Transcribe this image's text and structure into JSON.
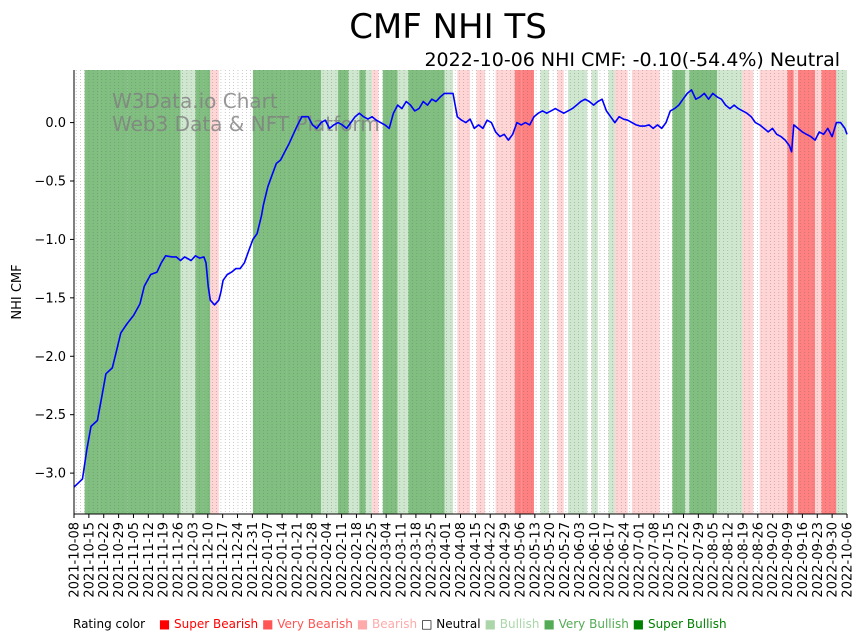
{
  "chart_data": {
    "type": "line",
    "title": "CMF NHI TS",
    "subtitle": "2022-10-06 NHI CMF: -0.10(-54.4%) Neutral",
    "ylabel": "NHI CMF",
    "xlabel": "",
    "ylim": [
      -3.35,
      0.45
    ],
    "yticks": [
      -3.0,
      -2.5,
      -2.0,
      -1.5,
      -1.0,
      -0.5,
      0.0
    ],
    "ytick_labels": [
      "−3.0",
      "−2.5",
      "−2.0",
      "−1.5",
      "−1.0",
      "−0.5",
      "0.0"
    ],
    "xrange": [
      0,
      363
    ],
    "xticks": [
      "2021-10-08",
      "2021-10-15",
      "2021-10-22",
      "2021-10-29",
      "2021-11-05",
      "2021-11-12",
      "2021-11-19",
      "2021-11-26",
      "2021-12-03",
      "2021-12-10",
      "2021-12-17",
      "2021-12-24",
      "2021-12-31",
      "2022-01-07",
      "2022-01-14",
      "2022-01-21",
      "2022-01-28",
      "2022-02-04",
      "2022-02-11",
      "2022-02-18",
      "2022-02-25",
      "2022-03-04",
      "2022-03-11",
      "2022-03-18",
      "2022-03-25",
      "2022-04-01",
      "2022-04-08",
      "2022-04-15",
      "2022-04-22",
      "2022-04-29",
      "2022-05-06",
      "2022-05-13",
      "2022-05-20",
      "2022-05-27",
      "2022-06-03",
      "2022-06-10",
      "2022-06-17",
      "2022-06-24",
      "2022-07-01",
      "2022-07-08",
      "2022-07-15",
      "2022-07-22",
      "2022-07-29",
      "2022-08-05",
      "2022-08-12",
      "2022-08-19",
      "2022-08-26",
      "2022-09-02",
      "2022-09-09",
      "2022-09-16",
      "2022-09-23",
      "2022-09-30",
      "2022-10-06"
    ],
    "series": [
      {
        "name": "NHI CMF",
        "color": "#0000ff",
        "points": [
          [
            0,
            -3.12
          ],
          [
            4,
            -3.05
          ],
          [
            6,
            -2.8
          ],
          [
            8,
            -2.6
          ],
          [
            11,
            -2.55
          ],
          [
            13,
            -2.35
          ],
          [
            15,
            -2.15
          ],
          [
            18,
            -2.1
          ],
          [
            20,
            -1.95
          ],
          [
            22,
            -1.8
          ],
          [
            25,
            -1.72
          ],
          [
            28,
            -1.65
          ],
          [
            31,
            -1.55
          ],
          [
            33,
            -1.4
          ],
          [
            36,
            -1.3
          ],
          [
            39,
            -1.28
          ],
          [
            41,
            -1.2
          ],
          [
            43,
            -1.14
          ],
          [
            46,
            -1.15
          ],
          [
            48,
            -1.15
          ],
          [
            50,
            -1.18
          ],
          [
            52,
            -1.15
          ],
          [
            55,
            -1.18
          ],
          [
            57,
            -1.14
          ],
          [
            59,
            -1.16
          ],
          [
            61,
            -1.15
          ],
          [
            62,
            -1.2
          ],
          [
            63,
            -1.4
          ],
          [
            64,
            -1.52
          ],
          [
            66,
            -1.56
          ],
          [
            68,
            -1.52
          ],
          [
            69,
            -1.45
          ],
          [
            70,
            -1.35
          ],
          [
            72,
            -1.3
          ],
          [
            74,
            -1.28
          ],
          [
            76,
            -1.25
          ],
          [
            78,
            -1.25
          ],
          [
            80,
            -1.2
          ],
          [
            82,
            -1.1
          ],
          [
            84,
            -1.0
          ],
          [
            86,
            -0.95
          ],
          [
            88,
            -0.8
          ],
          [
            89,
            -0.7
          ],
          [
            91,
            -0.55
          ],
          [
            93,
            -0.45
          ],
          [
            95,
            -0.35
          ],
          [
            97,
            -0.32
          ],
          [
            99,
            -0.25
          ],
          [
            101,
            -0.18
          ],
          [
            103,
            -0.1
          ],
          [
            105,
            -0.02
          ],
          [
            107,
            0.05
          ],
          [
            110,
            0.05
          ],
          [
            112,
            -0.02
          ],
          [
            114,
            -0.05
          ],
          [
            116,
            0.0
          ],
          [
            118,
            0.02
          ],
          [
            120,
            -0.05
          ],
          [
            122,
            -0.02
          ],
          [
            124,
            0.0
          ],
          [
            126,
            -0.02
          ],
          [
            128,
            -0.05
          ],
          [
            130,
            0.0
          ],
          [
            132,
            0.05
          ],
          [
            134,
            0.08
          ],
          [
            136,
            0.05
          ],
          [
            138,
            0.03
          ],
          [
            140,
            0.05
          ],
          [
            142,
            0.02
          ],
          [
            144,
            0.0
          ],
          [
            146,
            -0.02
          ],
          [
            148,
            -0.05
          ],
          [
            150,
            0.08
          ],
          [
            152,
            0.15
          ],
          [
            154,
            0.12
          ],
          [
            156,
            0.18
          ],
          [
            158,
            0.15
          ],
          [
            160,
            0.1
          ],
          [
            162,
            0.12
          ],
          [
            164,
            0.18
          ],
          [
            166,
            0.15
          ],
          [
            168,
            0.2
          ],
          [
            170,
            0.18
          ],
          [
            172,
            0.22
          ],
          [
            174,
            0.25
          ],
          [
            176,
            0.25
          ],
          [
            178,
            0.25
          ],
          [
            180,
            0.05
          ],
          [
            182,
            0.02
          ],
          [
            184,
            0.0
          ],
          [
            186,
            0.03
          ],
          [
            188,
            -0.05
          ],
          [
            190,
            -0.02
          ],
          [
            192,
            -0.05
          ],
          [
            194,
            0.02
          ],
          [
            196,
            0.0
          ],
          [
            198,
            -0.08
          ],
          [
            200,
            -0.12
          ],
          [
            202,
            -0.1
          ],
          [
            204,
            -0.15
          ],
          [
            206,
            -0.1
          ],
          [
            208,
            0.0
          ],
          [
            210,
            -0.02
          ],
          [
            212,
            0.0
          ],
          [
            214,
            -0.02
          ],
          [
            216,
            0.05
          ],
          [
            218,
            0.08
          ],
          [
            220,
            0.1
          ],
          [
            222,
            0.08
          ],
          [
            224,
            0.1
          ],
          [
            226,
            0.12
          ],
          [
            228,
            0.1
          ],
          [
            230,
            0.08
          ],
          [
            232,
            0.1
          ],
          [
            234,
            0.12
          ],
          [
            236,
            0.15
          ],
          [
            238,
            0.18
          ],
          [
            240,
            0.2
          ],
          [
            242,
            0.18
          ],
          [
            244,
            0.15
          ],
          [
            246,
            0.18
          ],
          [
            248,
            0.2
          ],
          [
            250,
            0.1
          ],
          [
            252,
            0.05
          ],
          [
            254,
            0.0
          ],
          [
            256,
            0.05
          ],
          [
            258,
            0.03
          ],
          [
            260,
            0.02
          ],
          [
            262,
            0.0
          ],
          [
            264,
            -0.02
          ],
          [
            266,
            -0.03
          ],
          [
            268,
            -0.03
          ],
          [
            270,
            -0.02
          ],
          [
            272,
            -0.05
          ],
          [
            274,
            -0.02
          ],
          [
            276,
            -0.05
          ],
          [
            278,
            0.0
          ],
          [
            280,
            0.1
          ],
          [
            282,
            0.12
          ],
          [
            284,
            0.15
          ],
          [
            286,
            0.2
          ],
          [
            288,
            0.25
          ],
          [
            290,
            0.28
          ],
          [
            292,
            0.2
          ],
          [
            294,
            0.22
          ],
          [
            296,
            0.25
          ],
          [
            298,
            0.2
          ],
          [
            300,
            0.25
          ],
          [
            302,
            0.22
          ],
          [
            304,
            0.2
          ],
          [
            306,
            0.15
          ],
          [
            308,
            0.12
          ],
          [
            310,
            0.15
          ],
          [
            312,
            0.12
          ],
          [
            314,
            0.1
          ],
          [
            316,
            0.08
          ],
          [
            318,
            0.05
          ],
          [
            320,
            0.0
          ],
          [
            322,
            -0.02
          ],
          [
            324,
            -0.05
          ],
          [
            326,
            -0.08
          ],
          [
            328,
            -0.05
          ],
          [
            330,
            -0.1
          ],
          [
            332,
            -0.12
          ],
          [
            334,
            -0.15
          ],
          [
            336,
            -0.2
          ],
          [
            337,
            -0.25
          ],
          [
            338,
            -0.02
          ],
          [
            340,
            -0.05
          ],
          [
            342,
            -0.08
          ],
          [
            344,
            -0.1
          ],
          [
            346,
            -0.12
          ],
          [
            348,
            -0.15
          ],
          [
            350,
            -0.08
          ],
          [
            352,
            -0.1
          ],
          [
            354,
            -0.05
          ],
          [
            356,
            -0.12
          ],
          [
            358,
            0.0
          ],
          [
            360,
            0.0
          ],
          [
            362,
            -0.05
          ],
          [
            363,
            -0.1
          ]
        ]
      }
    ],
    "rating_bands": [
      {
        "start": 5,
        "end": 12,
        "rating": "Very Bullish"
      },
      {
        "start": 12,
        "end": 25,
        "rating": "Very Bullish"
      },
      {
        "start": 25,
        "end": 38,
        "rating": "Very Bullish"
      },
      {
        "start": 38,
        "end": 50,
        "rating": "Very Bullish"
      },
      {
        "start": 50,
        "end": 57,
        "rating": "Bullish"
      },
      {
        "start": 57,
        "end": 61,
        "rating": "Very Bullish"
      },
      {
        "start": 61,
        "end": 64,
        "rating": "Very Bullish"
      },
      {
        "start": 64,
        "end": 68,
        "rating": "Bearish"
      },
      {
        "start": 84,
        "end": 100,
        "rating": "Very Bullish"
      },
      {
        "start": 100,
        "end": 116,
        "rating": "Very Bullish"
      },
      {
        "start": 116,
        "end": 124,
        "rating": "Bullish"
      },
      {
        "start": 124,
        "end": 129,
        "rating": "Very Bullish"
      },
      {
        "start": 129,
        "end": 134,
        "rating": "Bullish"
      },
      {
        "start": 134,
        "end": 137,
        "rating": "Very Bullish"
      },
      {
        "start": 137,
        "end": 140,
        "rating": "Bullish"
      },
      {
        "start": 140,
        "end": 143,
        "rating": "Bearish"
      },
      {
        "start": 145,
        "end": 152,
        "rating": "Very Bullish"
      },
      {
        "start": 152,
        "end": 157,
        "rating": "Bullish"
      },
      {
        "start": 157,
        "end": 167,
        "rating": "Very Bullish"
      },
      {
        "start": 167,
        "end": 174,
        "rating": "Very Bullish"
      },
      {
        "start": 174,
        "end": 178,
        "rating": "Bullish"
      },
      {
        "start": 180,
        "end": 186,
        "rating": "Bearish"
      },
      {
        "start": 189,
        "end": 193,
        "rating": "Bearish"
      },
      {
        "start": 198,
        "end": 203,
        "rating": "Bearish"
      },
      {
        "start": 203,
        "end": 207,
        "rating": "Bearish"
      },
      {
        "start": 207,
        "end": 210,
        "rating": "Very Bearish"
      },
      {
        "start": 210,
        "end": 216,
        "rating": "Very Bearish"
      },
      {
        "start": 219,
        "end": 223,
        "rating": "Bullish"
      },
      {
        "start": 227,
        "end": 230,
        "rating": "Bearish"
      },
      {
        "start": 232,
        "end": 241,
        "rating": "Bullish"
      },
      {
        "start": 243,
        "end": 246,
        "rating": "Bullish"
      },
      {
        "start": 251,
        "end": 254,
        "rating": "Bullish"
      },
      {
        "start": 254,
        "end": 260,
        "rating": "Bearish"
      },
      {
        "start": 262,
        "end": 267,
        "rating": "Bearish"
      },
      {
        "start": 267,
        "end": 275,
        "rating": "Bearish"
      },
      {
        "start": 281,
        "end": 287,
        "rating": "Very Bullish"
      },
      {
        "start": 287,
        "end": 289,
        "rating": "Bullish"
      },
      {
        "start": 289,
        "end": 302,
        "rating": "Very Bullish"
      },
      {
        "start": 302,
        "end": 307,
        "rating": "Bullish"
      },
      {
        "start": 307,
        "end": 314,
        "rating": "Bullish"
      },
      {
        "start": 314,
        "end": 319,
        "rating": "Bearish"
      },
      {
        "start": 322,
        "end": 335,
        "rating": "Bearish"
      },
      {
        "start": 335,
        "end": 338,
        "rating": "Very Bearish"
      },
      {
        "start": 338,
        "end": 340,
        "rating": "Bearish"
      },
      {
        "start": 340,
        "end": 348,
        "rating": "Very Bearish"
      },
      {
        "start": 348,
        "end": 351,
        "rating": "Bearish"
      },
      {
        "start": 351,
        "end": 358,
        "rating": "Very Bearish"
      },
      {
        "start": 358,
        "end": 360,
        "rating": "Bullish"
      },
      {
        "start": 360,
        "end": 363,
        "rating": "Bullish"
      }
    ]
  },
  "rating_colors": {
    "Super Bearish": "#ff0000",
    "Very Bearish": "#ff6666",
    "Bearish": "#ffaaaa",
    "Neutral": "#ffffff",
    "Bullish": "#aad6aa",
    "Very Bullish": "#55aa55",
    "Super Bullish": "#008000"
  },
  "band_fill": {
    "Very Bearish": "#ff8080",
    "Bearish": "#ffd5d5",
    "Bullish": "#cfe6cf",
    "Very Bullish": "#80bf80"
  },
  "watermark": {
    "line1": "W3Data.io Chart",
    "line2": "Web3 Data & NFT Platform"
  },
  "legend": {
    "label": "Rating color",
    "items": [
      {
        "name": "Super Bearish",
        "square": "■",
        "color": "#ff0000"
      },
      {
        "name": "Very Bearish",
        "square": "■",
        "color": "#ff5555"
      },
      {
        "name": "Bearish",
        "square": "■",
        "color": "#ffaaaa"
      },
      {
        "name": "Neutral",
        "square": "□",
        "color": "#000000"
      },
      {
        "name": "Bullish",
        "square": "■",
        "color": "#aad6aa"
      },
      {
        "name": "Very Bullish",
        "square": "■",
        "color": "#55aa55"
      },
      {
        "name": "Super Bullish",
        "square": "■",
        "color": "#008000"
      }
    ]
  }
}
